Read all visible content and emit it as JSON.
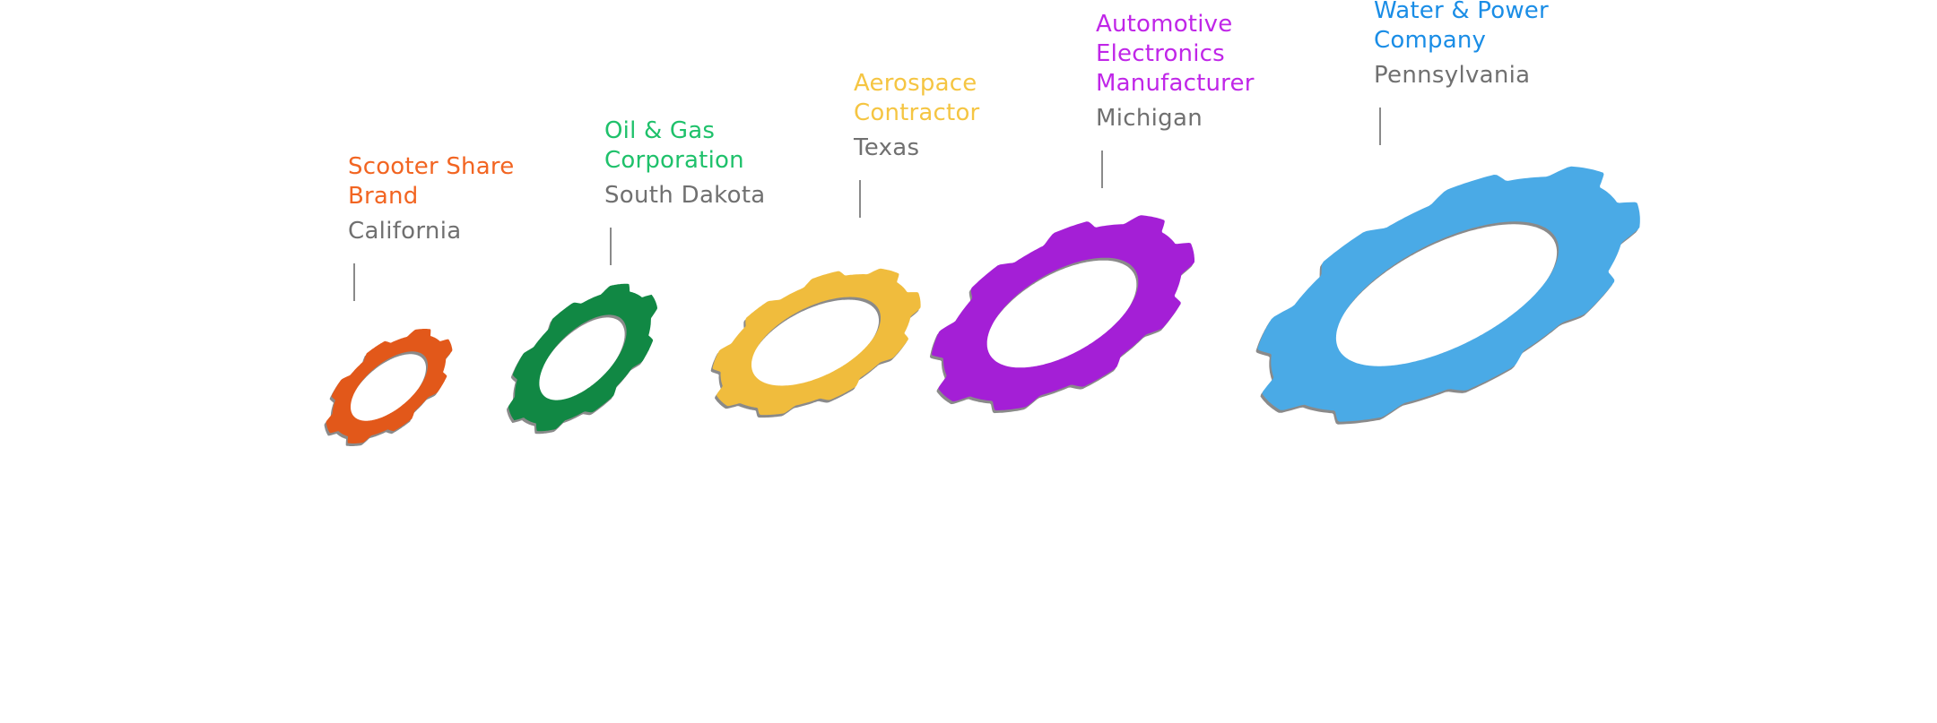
{
  "clients": [
    {
      "name": "Scooter Share\nBrand",
      "location": "California",
      "color": "#f26522",
      "gear_color": "#e2581a",
      "icon": "gear-ring-icon"
    },
    {
      "name": "Oil & Gas\nCorporation",
      "location": "South Dakota",
      "color": "#1fc16b",
      "gear_color": "#118844",
      "icon": "gear-ring-icon"
    },
    {
      "name": "Aerospace\nContractor",
      "location": "Texas",
      "color": "#f5c542",
      "gear_color": "#f0bc3d",
      "icon": "gear-ring-icon"
    },
    {
      "name": "Automotive\nElectronics\nManufacturer",
      "location": "Michigan",
      "color": "#c026e8",
      "gear_color": "#a41fd6",
      "icon": "gear-ring-icon"
    },
    {
      "name": "Water & Power\nCompany",
      "location": "Pennsylvania",
      "color": "#1a8de6",
      "gear_color": "#4aaae6",
      "icon": "gear-ring-icon"
    }
  ]
}
